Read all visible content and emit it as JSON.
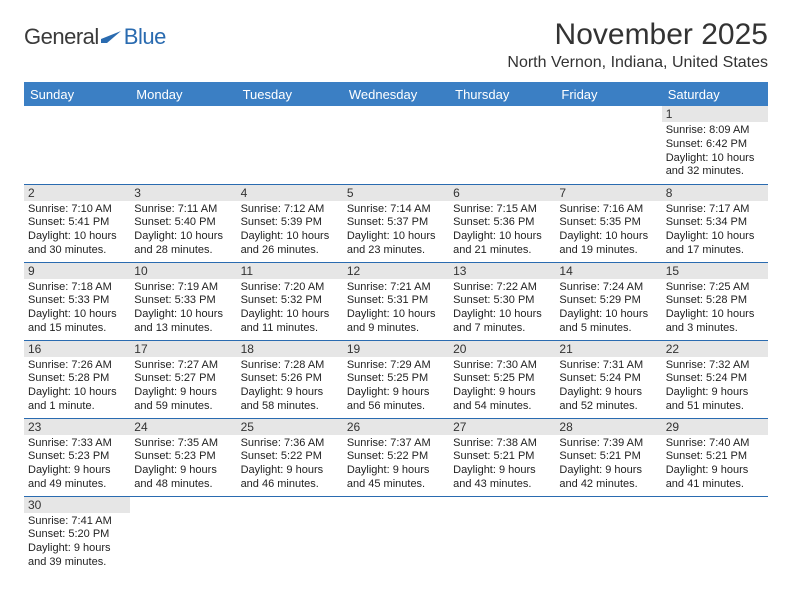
{
  "logo": {
    "general": "General",
    "blue": "Blue",
    "icon_color": "#2a6bb0"
  },
  "title": "November 2025",
  "location": "North Vernon, Indiana, United States",
  "colors": {
    "header_bg": "#3b7fc4",
    "header_text": "#ffffff",
    "rule": "#2a6bb0",
    "daynum_bg": "#e6e6e6",
    "text": "#222222"
  },
  "weekdays": [
    "Sunday",
    "Monday",
    "Tuesday",
    "Wednesday",
    "Thursday",
    "Friday",
    "Saturday"
  ],
  "weeks": [
    [
      {
        "n": "",
        "sr": "",
        "ss": "",
        "dl": ""
      },
      {
        "n": "",
        "sr": "",
        "ss": "",
        "dl": ""
      },
      {
        "n": "",
        "sr": "",
        "ss": "",
        "dl": ""
      },
      {
        "n": "",
        "sr": "",
        "ss": "",
        "dl": ""
      },
      {
        "n": "",
        "sr": "",
        "ss": "",
        "dl": ""
      },
      {
        "n": "",
        "sr": "",
        "ss": "",
        "dl": ""
      },
      {
        "n": "1",
        "sr": "Sunrise: 8:09 AM",
        "ss": "Sunset: 6:42 PM",
        "dl": "Daylight: 10 hours and 32 minutes."
      }
    ],
    [
      {
        "n": "2",
        "sr": "Sunrise: 7:10 AM",
        "ss": "Sunset: 5:41 PM",
        "dl": "Daylight: 10 hours and 30 minutes."
      },
      {
        "n": "3",
        "sr": "Sunrise: 7:11 AM",
        "ss": "Sunset: 5:40 PM",
        "dl": "Daylight: 10 hours and 28 minutes."
      },
      {
        "n": "4",
        "sr": "Sunrise: 7:12 AM",
        "ss": "Sunset: 5:39 PM",
        "dl": "Daylight: 10 hours and 26 minutes."
      },
      {
        "n": "5",
        "sr": "Sunrise: 7:14 AM",
        "ss": "Sunset: 5:37 PM",
        "dl": "Daylight: 10 hours and 23 minutes."
      },
      {
        "n": "6",
        "sr": "Sunrise: 7:15 AM",
        "ss": "Sunset: 5:36 PM",
        "dl": "Daylight: 10 hours and 21 minutes."
      },
      {
        "n": "7",
        "sr": "Sunrise: 7:16 AM",
        "ss": "Sunset: 5:35 PM",
        "dl": "Daylight: 10 hours and 19 minutes."
      },
      {
        "n": "8",
        "sr": "Sunrise: 7:17 AM",
        "ss": "Sunset: 5:34 PM",
        "dl": "Daylight: 10 hours and 17 minutes."
      }
    ],
    [
      {
        "n": "9",
        "sr": "Sunrise: 7:18 AM",
        "ss": "Sunset: 5:33 PM",
        "dl": "Daylight: 10 hours and 15 minutes."
      },
      {
        "n": "10",
        "sr": "Sunrise: 7:19 AM",
        "ss": "Sunset: 5:33 PM",
        "dl": "Daylight: 10 hours and 13 minutes."
      },
      {
        "n": "11",
        "sr": "Sunrise: 7:20 AM",
        "ss": "Sunset: 5:32 PM",
        "dl": "Daylight: 10 hours and 11 minutes."
      },
      {
        "n": "12",
        "sr": "Sunrise: 7:21 AM",
        "ss": "Sunset: 5:31 PM",
        "dl": "Daylight: 10 hours and 9 minutes."
      },
      {
        "n": "13",
        "sr": "Sunrise: 7:22 AM",
        "ss": "Sunset: 5:30 PM",
        "dl": "Daylight: 10 hours and 7 minutes."
      },
      {
        "n": "14",
        "sr": "Sunrise: 7:24 AM",
        "ss": "Sunset: 5:29 PM",
        "dl": "Daylight: 10 hours and 5 minutes."
      },
      {
        "n": "15",
        "sr": "Sunrise: 7:25 AM",
        "ss": "Sunset: 5:28 PM",
        "dl": "Daylight: 10 hours and 3 minutes."
      }
    ],
    [
      {
        "n": "16",
        "sr": "Sunrise: 7:26 AM",
        "ss": "Sunset: 5:28 PM",
        "dl": "Daylight: 10 hours and 1 minute."
      },
      {
        "n": "17",
        "sr": "Sunrise: 7:27 AM",
        "ss": "Sunset: 5:27 PM",
        "dl": "Daylight: 9 hours and 59 minutes."
      },
      {
        "n": "18",
        "sr": "Sunrise: 7:28 AM",
        "ss": "Sunset: 5:26 PM",
        "dl": "Daylight: 9 hours and 58 minutes."
      },
      {
        "n": "19",
        "sr": "Sunrise: 7:29 AM",
        "ss": "Sunset: 5:25 PM",
        "dl": "Daylight: 9 hours and 56 minutes."
      },
      {
        "n": "20",
        "sr": "Sunrise: 7:30 AM",
        "ss": "Sunset: 5:25 PM",
        "dl": "Daylight: 9 hours and 54 minutes."
      },
      {
        "n": "21",
        "sr": "Sunrise: 7:31 AM",
        "ss": "Sunset: 5:24 PM",
        "dl": "Daylight: 9 hours and 52 minutes."
      },
      {
        "n": "22",
        "sr": "Sunrise: 7:32 AM",
        "ss": "Sunset: 5:24 PM",
        "dl": "Daylight: 9 hours and 51 minutes."
      }
    ],
    [
      {
        "n": "23",
        "sr": "Sunrise: 7:33 AM",
        "ss": "Sunset: 5:23 PM",
        "dl": "Daylight: 9 hours and 49 minutes."
      },
      {
        "n": "24",
        "sr": "Sunrise: 7:35 AM",
        "ss": "Sunset: 5:23 PM",
        "dl": "Daylight: 9 hours and 48 minutes."
      },
      {
        "n": "25",
        "sr": "Sunrise: 7:36 AM",
        "ss": "Sunset: 5:22 PM",
        "dl": "Daylight: 9 hours and 46 minutes."
      },
      {
        "n": "26",
        "sr": "Sunrise: 7:37 AM",
        "ss": "Sunset: 5:22 PM",
        "dl": "Daylight: 9 hours and 45 minutes."
      },
      {
        "n": "27",
        "sr": "Sunrise: 7:38 AM",
        "ss": "Sunset: 5:21 PM",
        "dl": "Daylight: 9 hours and 43 minutes."
      },
      {
        "n": "28",
        "sr": "Sunrise: 7:39 AM",
        "ss": "Sunset: 5:21 PM",
        "dl": "Daylight: 9 hours and 42 minutes."
      },
      {
        "n": "29",
        "sr": "Sunrise: 7:40 AM",
        "ss": "Sunset: 5:21 PM",
        "dl": "Daylight: 9 hours and 41 minutes."
      }
    ],
    [
      {
        "n": "30",
        "sr": "Sunrise: 7:41 AM",
        "ss": "Sunset: 5:20 PM",
        "dl": "Daylight: 9 hours and 39 minutes."
      },
      {
        "n": "",
        "sr": "",
        "ss": "",
        "dl": ""
      },
      {
        "n": "",
        "sr": "",
        "ss": "",
        "dl": ""
      },
      {
        "n": "",
        "sr": "",
        "ss": "",
        "dl": ""
      },
      {
        "n": "",
        "sr": "",
        "ss": "",
        "dl": ""
      },
      {
        "n": "",
        "sr": "",
        "ss": "",
        "dl": ""
      },
      {
        "n": "",
        "sr": "",
        "ss": "",
        "dl": ""
      }
    ]
  ]
}
